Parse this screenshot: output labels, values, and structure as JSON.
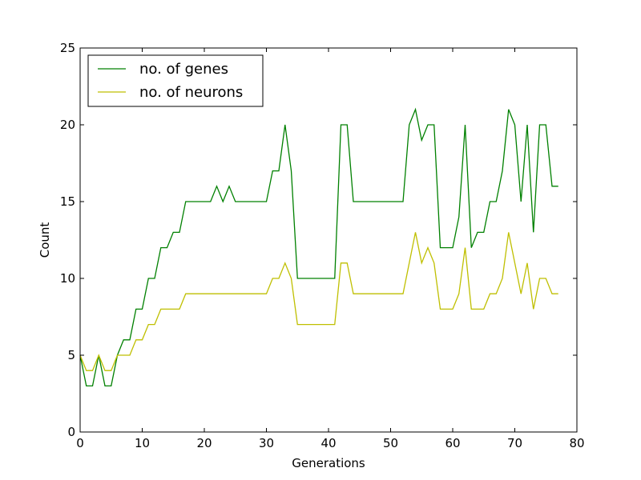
{
  "chart_data": {
    "type": "line",
    "xlabel": "Generations",
    "ylabel": "Count",
    "xlim": [
      0,
      80
    ],
    "ylim": [
      0,
      25
    ],
    "xticks": [
      0,
      10,
      20,
      30,
      40,
      50,
      60,
      70,
      80
    ],
    "yticks": [
      0,
      5,
      10,
      15,
      20,
      25
    ],
    "grid": false,
    "legend_position": "top-left",
    "series": [
      {
        "name": "no. of genes",
        "color": "#008000",
        "x": [
          0,
          1,
          2,
          3,
          4,
          5,
          6,
          7,
          8,
          9,
          10,
          11,
          12,
          13,
          14,
          15,
          16,
          17,
          18,
          19,
          20,
          21,
          22,
          23,
          24,
          25,
          26,
          27,
          28,
          29,
          30,
          31,
          32,
          33,
          34,
          35,
          36,
          37,
          38,
          39,
          40,
          41,
          42,
          43,
          44,
          45,
          46,
          47,
          48,
          49,
          50,
          51,
          52,
          53,
          54,
          55,
          56,
          57,
          58,
          59,
          60,
          61,
          62,
          63,
          64,
          65,
          66,
          67,
          68,
          69,
          70,
          71,
          72,
          73,
          74,
          75,
          76,
          77
        ],
        "y": [
          5,
          3,
          3,
          5,
          3,
          3,
          5,
          6,
          6,
          8,
          8,
          10,
          10,
          12,
          12,
          13,
          13,
          15,
          15,
          15,
          15,
          15,
          16,
          15,
          16,
          15,
          15,
          15,
          15,
          15,
          15,
          17,
          17,
          20,
          17,
          10,
          10,
          10,
          10,
          10,
          10,
          10,
          20,
          20,
          15,
          15,
          15,
          15,
          15,
          15,
          15,
          15,
          15,
          20,
          21,
          19,
          20,
          20,
          12,
          12,
          12,
          14,
          20,
          12,
          13,
          13,
          15,
          15,
          17,
          21,
          20,
          15,
          20,
          13,
          20,
          20,
          16,
          16
        ]
      },
      {
        "name": "no. of neurons",
        "color": "#bfbf00",
        "x": [
          0,
          1,
          2,
          3,
          4,
          5,
          6,
          7,
          8,
          9,
          10,
          11,
          12,
          13,
          14,
          15,
          16,
          17,
          18,
          19,
          20,
          21,
          22,
          23,
          24,
          25,
          26,
          27,
          28,
          29,
          30,
          31,
          32,
          33,
          34,
          35,
          36,
          37,
          38,
          39,
          40,
          41,
          42,
          43,
          44,
          45,
          46,
          47,
          48,
          49,
          50,
          51,
          52,
          53,
          54,
          55,
          56,
          57,
          58,
          59,
          60,
          61,
          62,
          63,
          64,
          65,
          66,
          67,
          68,
          69,
          70,
          71,
          72,
          73,
          74,
          75,
          76,
          77
        ],
        "y": [
          5,
          4,
          4,
          5,
          4,
          4,
          5,
          5,
          5,
          6,
          6,
          7,
          7,
          8,
          8,
          8,
          8,
          9,
          9,
          9,
          9,
          9,
          9,
          9,
          9,
          9,
          9,
          9,
          9,
          9,
          9,
          10,
          10,
          11,
          10,
          7,
          7,
          7,
          7,
          7,
          7,
          7,
          11,
          11,
          9,
          9,
          9,
          9,
          9,
          9,
          9,
          9,
          9,
          11,
          13,
          11,
          12,
          11,
          8,
          8,
          8,
          9,
          12,
          8,
          8,
          8,
          9,
          9,
          10,
          13,
          11,
          9,
          11,
          8,
          10,
          10,
          9,
          9
        ]
      }
    ]
  }
}
